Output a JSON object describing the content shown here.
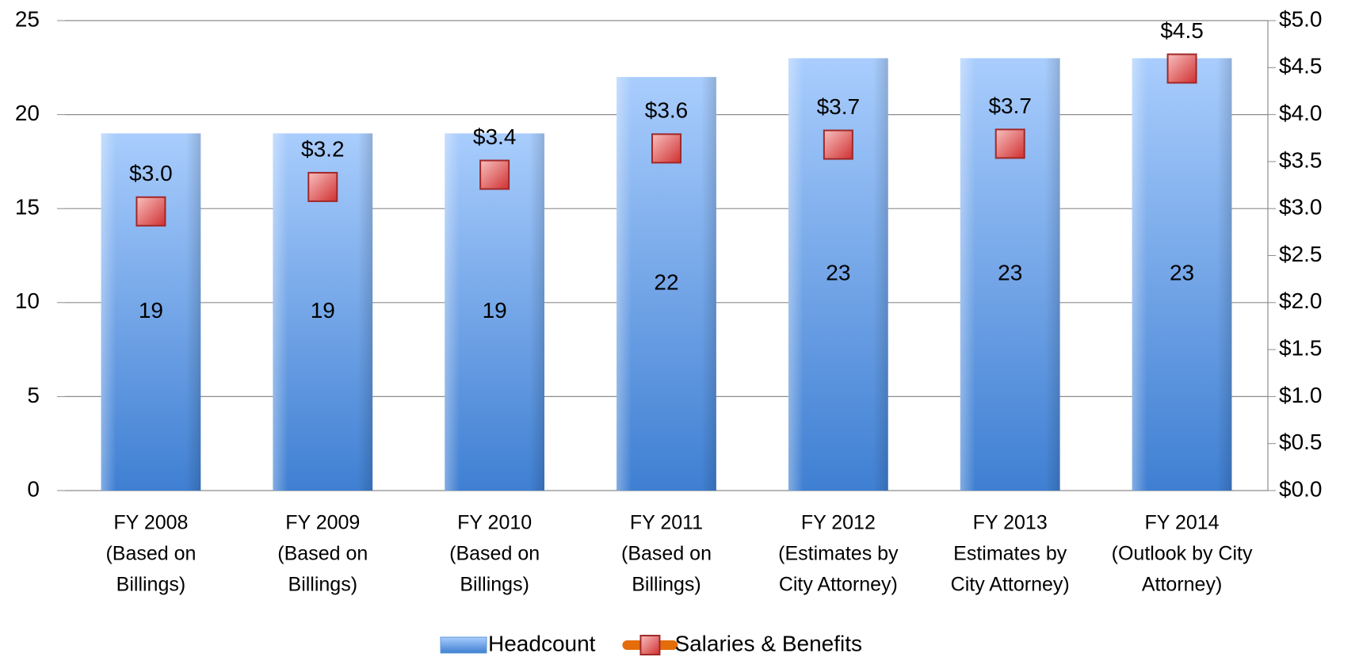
{
  "chart_data": {
    "type": "bar+line",
    "categories": [
      [
        "FY 2008",
        "(Based on",
        "Billings)"
      ],
      [
        "FY 2009",
        "(Based on",
        "Billings)"
      ],
      [
        "FY 2010",
        "(Based on",
        "Billings)"
      ],
      [
        "FY 2011",
        "(Based on",
        "Billings)"
      ],
      [
        "FY 2012",
        "(Estimates by",
        "City Attorney)"
      ],
      [
        "FY 2013",
        "Estimates by",
        "City Attorney)"
      ],
      [
        "FY 2014",
        "(Outlook by City",
        "Attorney)"
      ]
    ],
    "series": [
      {
        "name": "Headcount",
        "type": "bar",
        "color": "#5b9bd5",
        "values": [
          19,
          19,
          19,
          22,
          23,
          23,
          23
        ]
      },
      {
        "name": "Salaries & Benefits",
        "type": "line",
        "axis": "y2",
        "color": "#e46c0a",
        "marker_color": "#e06666",
        "values": [
          2.97,
          3.23,
          3.36,
          3.64,
          3.68,
          3.69,
          4.49
        ],
        "value_labels": [
          "$3.0",
          "$3.2",
          "$3.4",
          "$3.6",
          "$3.7",
          "$3.7",
          "$4.5"
        ]
      }
    ],
    "ylim": [
      0,
      25
    ],
    "yticks": [
      0,
      5,
      10,
      15,
      20,
      25
    ],
    "y2lim": [
      0,
      5
    ],
    "y2ticks": [
      {
        "value": 0,
        "label": "$0.0"
      },
      {
        "value": 0.5,
        "label": "$0.5"
      },
      {
        "value": 1,
        "label": "$1.0"
      },
      {
        "value": 1.5,
        "label": "$1.5"
      },
      {
        "value": 2,
        "label": "$2.0"
      },
      {
        "value": 2.5,
        "label": "$2.5"
      },
      {
        "value": 3,
        "label": "$3.0"
      },
      {
        "value": 3.5,
        "label": "$3.5"
      },
      {
        "value": 4,
        "label": "$4.0"
      },
      {
        "value": 4.5,
        "label": "$4.5"
      },
      {
        "value": 5,
        "label": "$5.0"
      }
    ],
    "grid": true,
    "legend": "bottom"
  }
}
